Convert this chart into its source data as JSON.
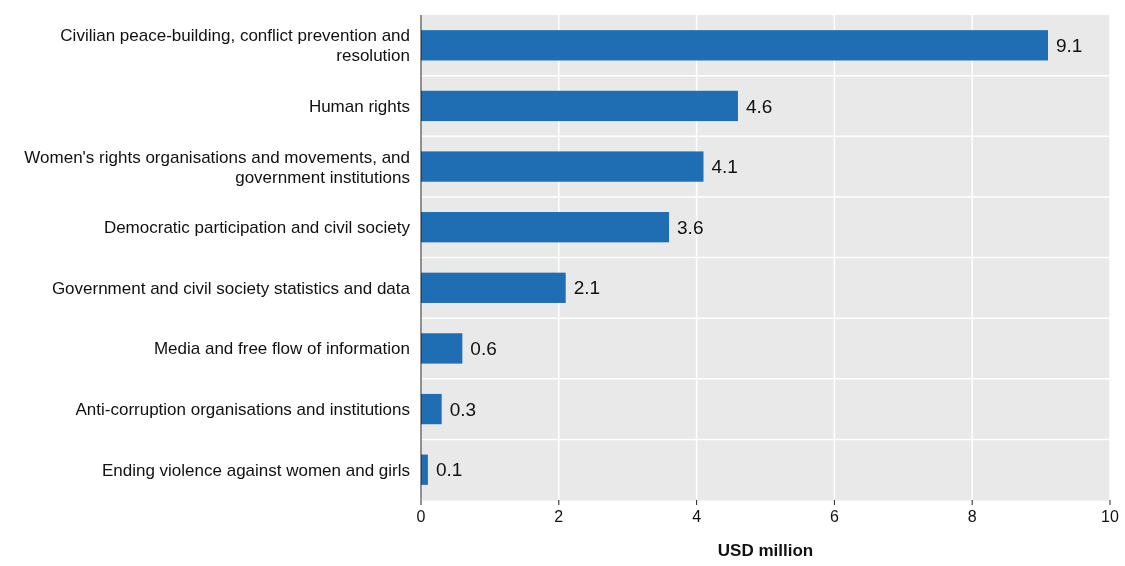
{
  "chart_data": {
    "type": "bar",
    "orientation": "horizontal",
    "categories": [
      "Civilian peace-building, conflict prevention and resolution",
      "Human rights",
      "Women's rights organisations and movements, and government institutions",
      "Democratic participation and civil society",
      "Government and civil society statistics and data",
      "Media and free flow of information",
      "Anti-corruption organisations and institutions",
      "Ending violence against women and girls"
    ],
    "values": [
      9.1,
      4.6,
      4.1,
      3.6,
      2.1,
      0.6,
      0.3,
      0.1
    ],
    "color": "#1f6db3",
    "xlabel": "USD million",
    "xlim": [
      0,
      10
    ],
    "xticks": [
      0,
      2,
      4,
      6,
      8,
      10
    ],
    "grid": "x",
    "data_labels": true
  }
}
